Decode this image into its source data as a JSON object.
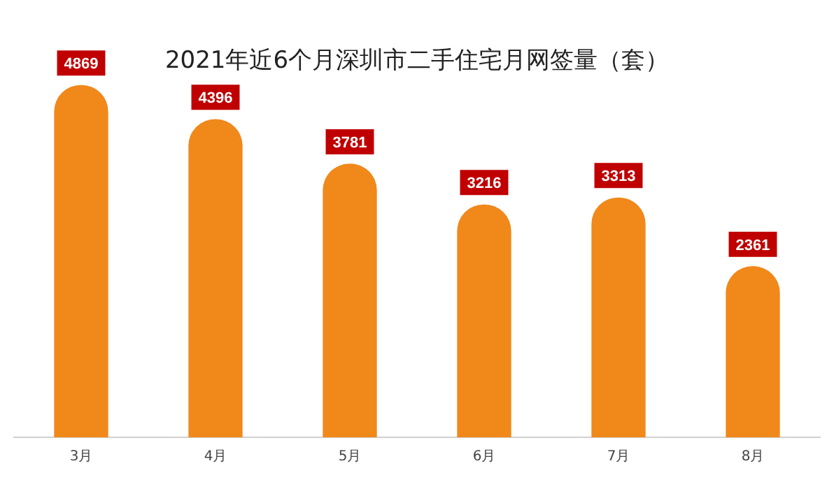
{
  "chart_data": {
    "type": "bar",
    "title": "2021年近6个月深圳市二手住宅月网签量（套）",
    "categories": [
      "3月",
      "4月",
      "5月",
      "6月",
      "7月",
      "8月"
    ],
    "values": [
      4869,
      4396,
      3781,
      3216,
      3313,
      2361
    ],
    "color": "#f0881a",
    "data_labels": true,
    "grid": false,
    "legend": false
  }
}
